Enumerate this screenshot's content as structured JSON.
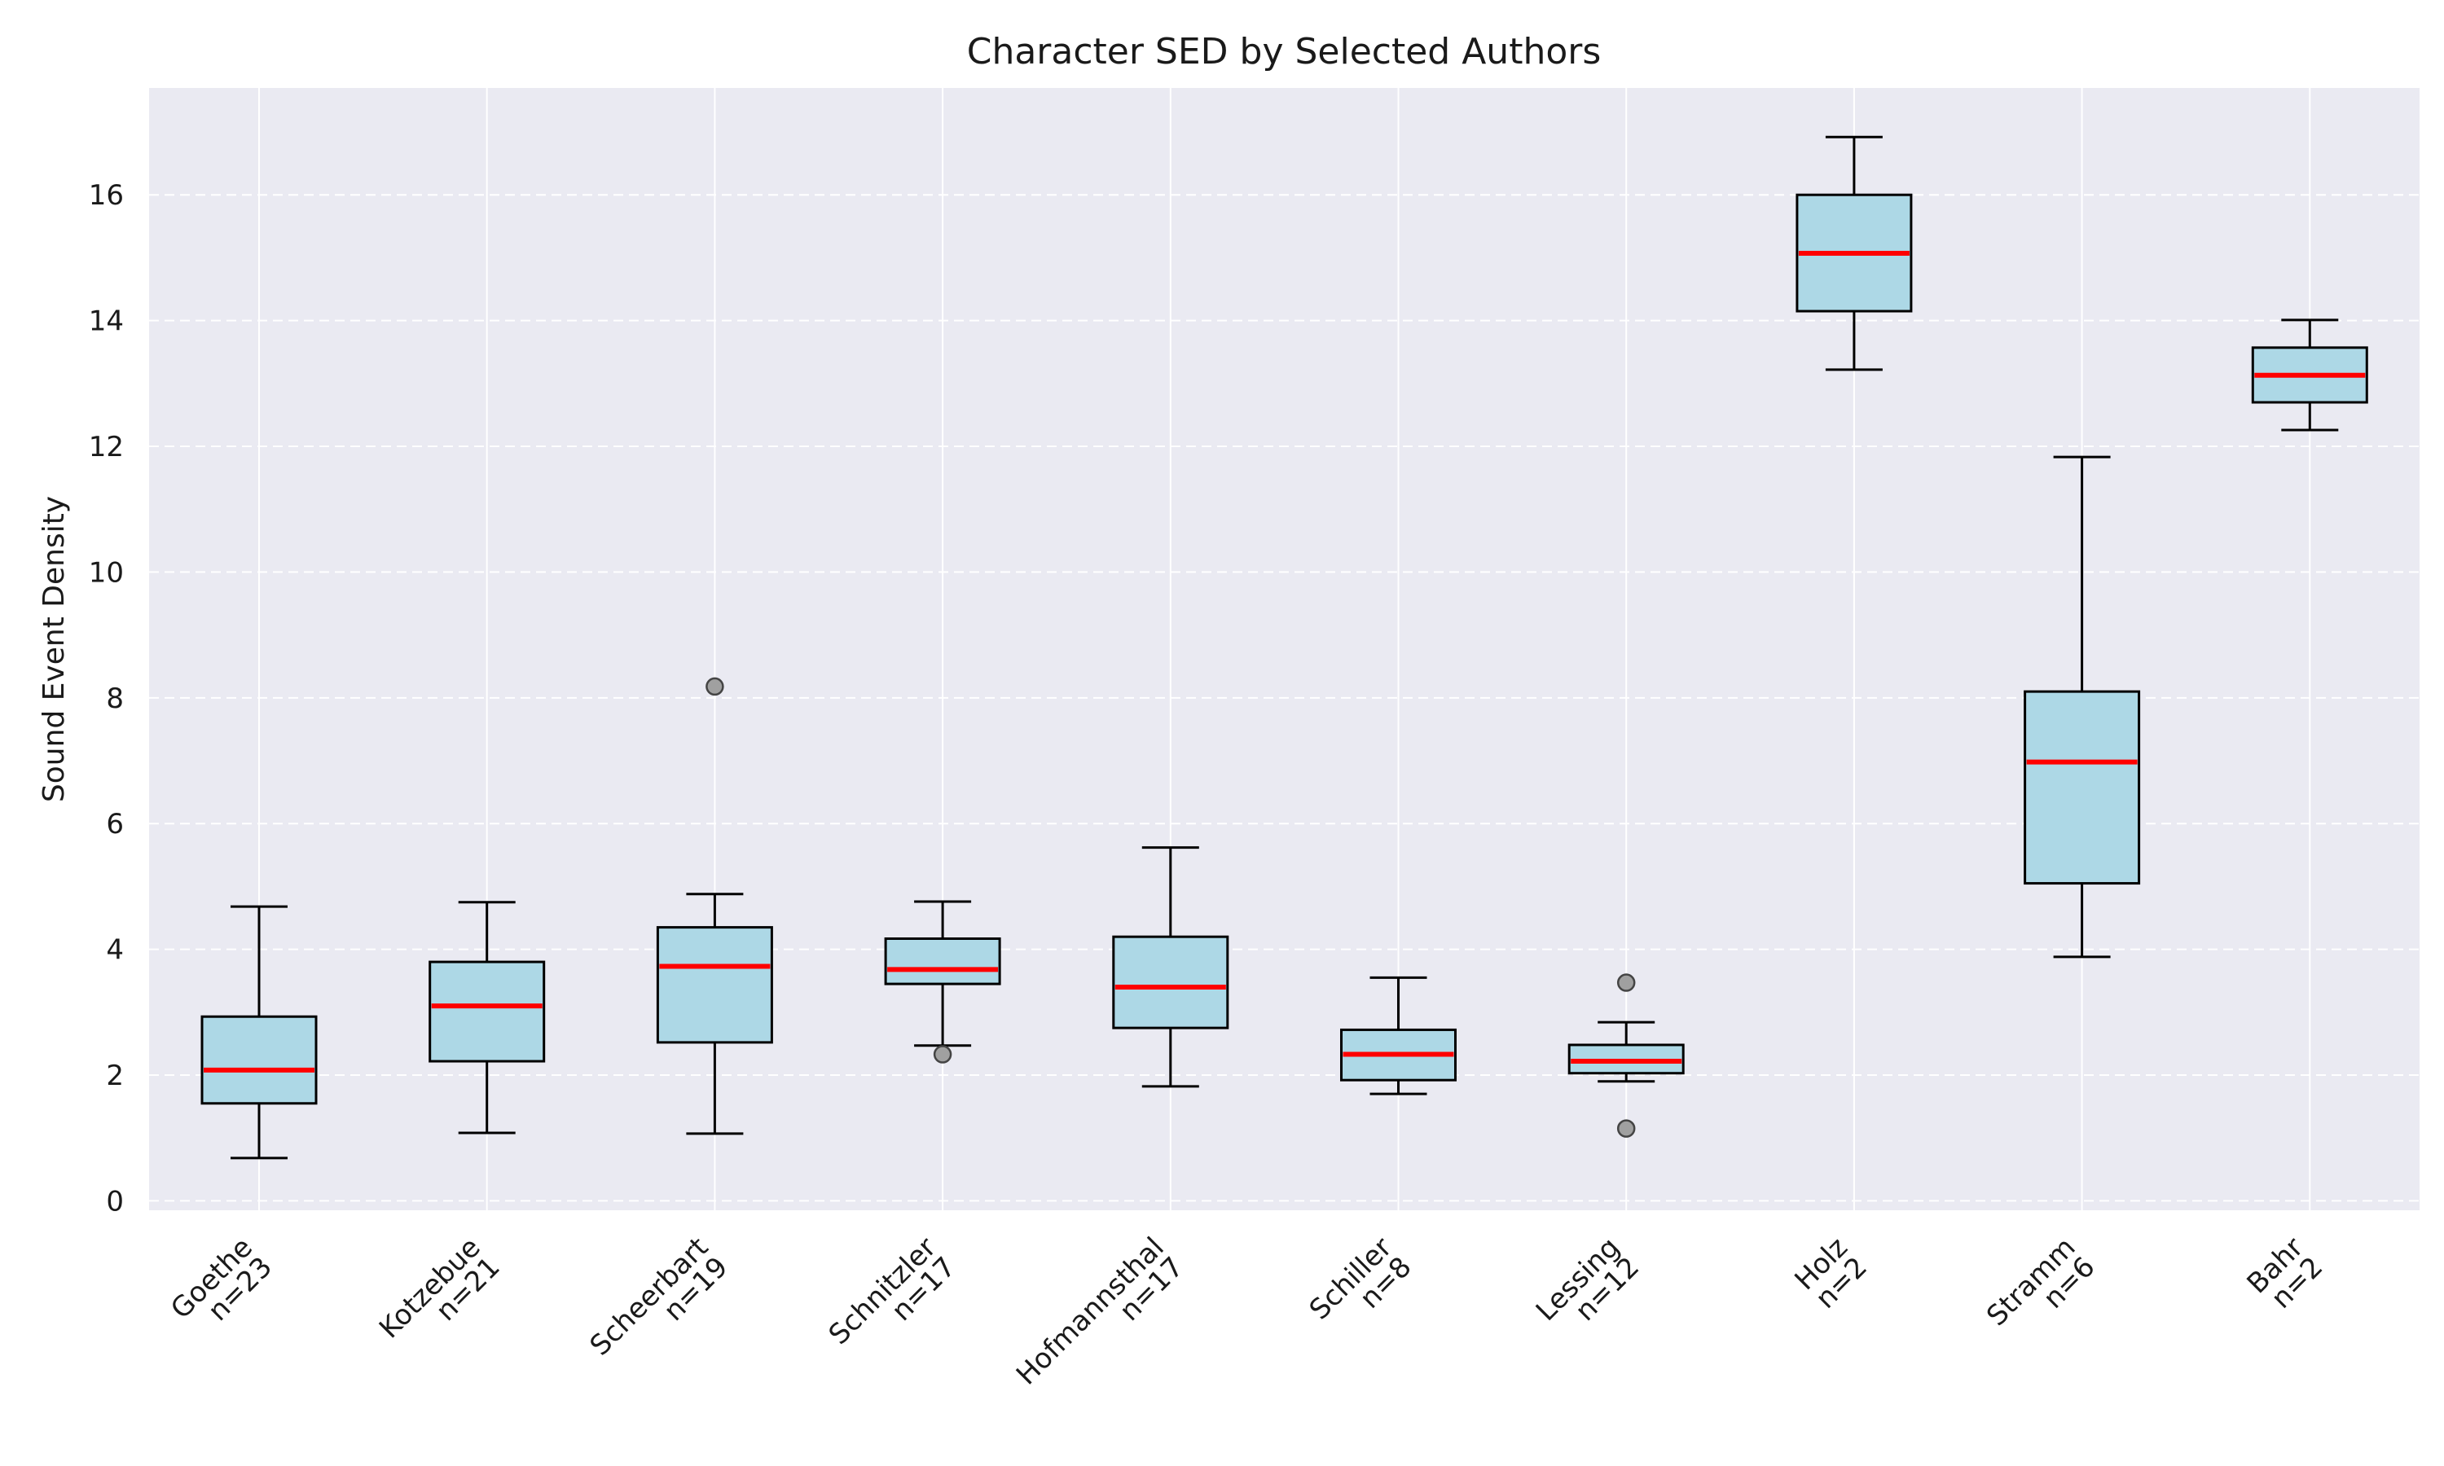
{
  "chart_data": {
    "type": "box",
    "title": "Character SED by Selected Authors",
    "xlabel": "",
    "ylabel": "Sound Event Density",
    "ylim": [
      -0.15,
      17.7
    ],
    "yticks": [
      0,
      2,
      4,
      6,
      8,
      10,
      12,
      14,
      16
    ],
    "grid": {
      "y": "dashed",
      "x": "solid"
    },
    "colors": {
      "background": "#eaeaf2",
      "box_fill": "#add8e6",
      "median": "#ff0000",
      "outlier": "#a0a0a0",
      "grid": "#ffffff"
    },
    "categories": [
      {
        "name": "Goethe",
        "n": "n=23"
      },
      {
        "name": "Kotzebue",
        "n": "n=21"
      },
      {
        "name": "Scheerbart",
        "n": "n=19"
      },
      {
        "name": "Schnitzler",
        "n": "n=17"
      },
      {
        "name": "Hofmannsthal",
        "n": "n=17"
      },
      {
        "name": "Schiller",
        "n": "n=8"
      },
      {
        "name": "Lessing",
        "n": "n=12"
      },
      {
        "name": "Holz",
        "n": "n=2"
      },
      {
        "name": "Stramm",
        "n": "n=6"
      },
      {
        "name": "Bahr",
        "n": "n=2"
      }
    ],
    "boxes": [
      {
        "whisker_low": 0.68,
        "q1": 1.55,
        "median": 2.08,
        "q3": 2.93,
        "whisker_high": 4.68,
        "outliers": []
      },
      {
        "whisker_low": 1.08,
        "q1": 2.22,
        "median": 3.1,
        "q3": 3.8,
        "whisker_high": 4.75,
        "outliers": []
      },
      {
        "whisker_low": 1.07,
        "q1": 2.52,
        "median": 3.73,
        "q3": 4.35,
        "whisker_high": 4.88,
        "outliers": [
          8.18
        ]
      },
      {
        "whisker_low": 2.47,
        "q1": 3.45,
        "median": 3.68,
        "q3": 4.17,
        "whisker_high": 4.76,
        "outliers": [
          2.33
        ]
      },
      {
        "whisker_low": 1.82,
        "q1": 2.75,
        "median": 3.4,
        "q3": 4.2,
        "whisker_high": 5.62,
        "outliers": []
      },
      {
        "whisker_low": 1.7,
        "q1": 1.92,
        "median": 2.33,
        "q3": 2.72,
        "whisker_high": 3.55,
        "outliers": []
      },
      {
        "whisker_low": 1.9,
        "q1": 2.03,
        "median": 2.22,
        "q3": 2.48,
        "whisker_high": 2.84,
        "outliers": [
          3.47,
          1.15
        ]
      },
      {
        "whisker_low": 13.22,
        "q1": 14.15,
        "median": 15.07,
        "q3": 16.0,
        "whisker_high": 16.92,
        "outliers": []
      },
      {
        "whisker_low": 3.88,
        "q1": 5.05,
        "median": 6.98,
        "q3": 8.1,
        "whisker_high": 11.83,
        "outliers": []
      },
      {
        "whisker_low": 12.26,
        "q1": 12.7,
        "median": 13.13,
        "q3": 13.57,
        "whisker_high": 14.01,
        "outliers": []
      }
    ]
  }
}
